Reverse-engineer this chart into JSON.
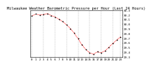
{
  "title": "Milwaukee Weather Barometric Pressure per Hour (Last 24 Hours)",
  "hours": [
    0,
    1,
    2,
    3,
    4,
    5,
    6,
    7,
    8,
    9,
    10,
    11,
    12,
    13,
    14,
    15,
    16,
    17,
    18,
    19,
    20,
    21,
    22,
    23
  ],
  "pressure": [
    30.18,
    30.22,
    30.2,
    30.21,
    30.23,
    30.19,
    30.16,
    30.11,
    30.06,
    29.99,
    29.91,
    29.81,
    29.69,
    29.56,
    29.46,
    29.39,
    29.36,
    29.41,
    29.39,
    29.43,
    29.51,
    29.59,
    29.66,
    29.73
  ],
  "ylim": [
    29.3,
    30.3
  ],
  "yticks": [
    29.3,
    29.4,
    29.5,
    29.6,
    29.7,
    29.8,
    29.9,
    30.0,
    30.1,
    30.2,
    30.3
  ],
  "ytick_labels": [
    "29.3",
    "29.4",
    "29.5",
    "29.6",
    "29.7",
    "29.8",
    "29.9",
    "30.0",
    "30.1",
    "30.2",
    "30.3"
  ],
  "line_color": "#ff0000",
  "marker_color": "#000000",
  "bg_color": "#ffffff",
  "grid_color": "#888888",
  "title_fontsize": 4.0,
  "tick_fontsize": 3.0,
  "vgrid_positions": [
    0,
    3,
    6,
    9,
    12,
    15,
    18,
    21,
    23
  ]
}
